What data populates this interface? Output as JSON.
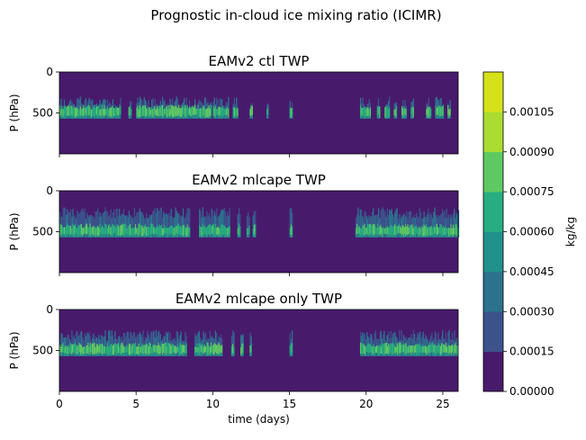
{
  "figure_title": "Prognostic in-cloud ice mixing ratio (ICIMR)",
  "chart_data": [
    {
      "type": "heatmap",
      "title": "EAMv2 ctl TWP",
      "xlabel": "",
      "ylabel": "P (hPa)",
      "yticks": [
        "0",
        "500"
      ],
      "xticks": [],
      "xlim": [
        0,
        26
      ],
      "ylim_hpa": [
        1000,
        0
      ],
      "cloud_level_hpa": [
        300,
        560
      ],
      "active_intervals_days": [
        [
          0,
          4.0
        ],
        [
          4.5,
          4.7
        ],
        [
          5.0,
          9.9
        ],
        [
          10.0,
          11.0
        ],
        [
          11.3,
          11.6
        ],
        [
          12.4,
          12.6
        ],
        [
          13.5,
          13.6
        ],
        [
          15.0,
          15.2
        ],
        [
          19.6,
          20.3
        ],
        [
          20.7,
          20.9
        ],
        [
          21.2,
          21.5
        ],
        [
          21.8,
          22.0
        ],
        [
          22.3,
          22.6
        ],
        [
          22.9,
          23.1
        ],
        [
          23.9,
          24.2
        ],
        [
          24.5,
          25.0
        ],
        [
          25.3,
          25.5
        ]
      ],
      "peak_value_kgkg": 0.00085
    },
    {
      "type": "heatmap",
      "title": "EAMv2 mlcape TWP",
      "xlabel": "",
      "ylabel": "P (hPa)",
      "yticks": [
        "0",
        "500"
      ],
      "xticks": [],
      "xlim": [
        0,
        26
      ],
      "ylim_hpa": [
        1000,
        0
      ],
      "cloud_level_hpa": [
        200,
        560
      ],
      "active_intervals_days": [
        [
          0,
          8.5
        ],
        [
          9.1,
          11.1
        ],
        [
          11.6,
          11.8
        ],
        [
          12.2,
          12.4
        ],
        [
          12.6,
          12.8
        ],
        [
          15.0,
          15.2
        ],
        [
          19.3,
          26.0
        ]
      ],
      "peak_value_kgkg": 0.0008
    },
    {
      "type": "heatmap",
      "title": "EAMv2 mlcape only TWP",
      "xlabel": "time (days)",
      "ylabel": "P (hPa)",
      "yticks": [
        "0",
        "500"
      ],
      "xticks": [
        "0",
        "5",
        "10",
        "15",
        "20",
        "25"
      ],
      "xlim": [
        0,
        26
      ],
      "ylim_hpa": [
        1000,
        0
      ],
      "cloud_level_hpa": [
        250,
        560
      ],
      "active_intervals_days": [
        [
          0,
          8.3
        ],
        [
          8.8,
          10.6
        ],
        [
          11.2,
          11.4
        ],
        [
          11.8,
          12.0
        ],
        [
          12.4,
          12.5
        ],
        [
          15.0,
          15.2
        ],
        [
          19.6,
          26.0
        ]
      ],
      "peak_value_kgkg": 0.00085
    }
  ],
  "colorbar": {
    "label": "kg/kg",
    "ticks": [
      "0.00000",
      "0.00015",
      "0.00030",
      "0.00045",
      "0.00060",
      "0.00075",
      "0.00090",
      "0.00105"
    ],
    "colors": [
      "#481a6c",
      "#3b528b",
      "#2c728e",
      "#21918c",
      "#27ad81",
      "#5ec962",
      "#aadc32",
      "#d5e21a"
    ]
  }
}
